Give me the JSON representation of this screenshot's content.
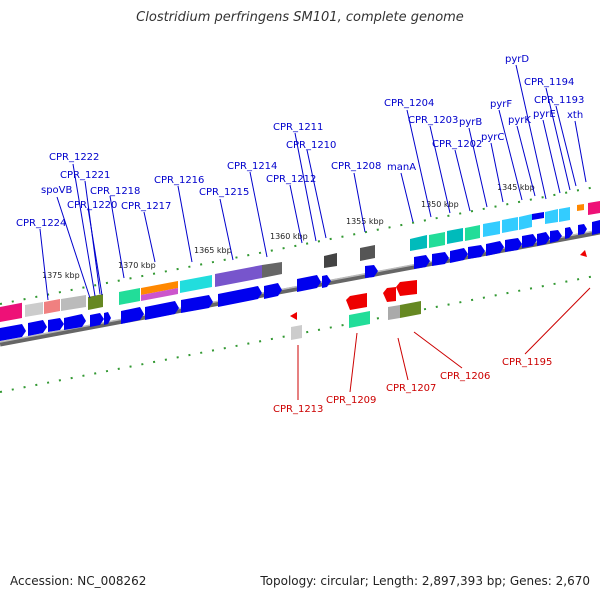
{
  "title": "Clostridium perfringens SM101, complete genome",
  "accession": "Accession: NC_008262",
  "topology": "Topology: circular; Length: 2,897,393 bp; Genes: 2,670",
  "colors": {
    "forward_label": "#0000cc",
    "reverse_label": "#cc0000",
    "forward_gene": "#0000ee",
    "reverse_gene": "#ee0000",
    "backbone": "#888888",
    "tick": "#339933"
  },
  "kbp_ticks": [
    "1345 kbp",
    "1350 kbp",
    "1355 kbp",
    "1360 kbp",
    "1365 kbp",
    "1370 kbp",
    "1375 kbp"
  ],
  "forward_labels": [
    "CPR_1224",
    "spoVB",
    "CPR_1221",
    "CPR_1222",
    "CPR_1220",
    "CPR_1218",
    "CPR_1217",
    "CPR_1216",
    "CPR_1215",
    "CPR_1214",
    "CPR_1212",
    "CPR_1211",
    "CPR_1210",
    "CPR_1208",
    "manA",
    "CPR_1204",
    "CPR_1203",
    "CPR_1202",
    "pyrB",
    "pyrC",
    "pyrF",
    "pyrK",
    "pyrE",
    "pyrD",
    "CPR_1194",
    "CPR_1193",
    "xth"
  ],
  "reverse_labels": [
    "CPR_1213",
    "CPR_1209",
    "CPR_1207",
    "CPR_1206",
    "CPR_1195"
  ]
}
